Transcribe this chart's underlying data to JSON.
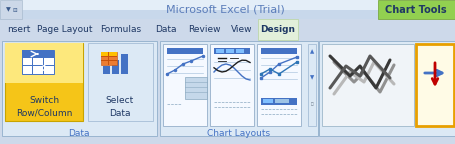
{
  "title_text": "Microsoft Excel (Trial)",
  "title_color": "#5b7dba",
  "chart_tools_text": "Chart Tools",
  "chart_tools_bg": "#92d050",
  "chart_tools_color": "#1f3864",
  "ribbon_bg": "#cdd9ea",
  "menu_items": [
    "nsert",
    "Page Layout",
    "Formulas",
    "Data",
    "Review",
    "View",
    "Design"
  ],
  "menu_color": "#1f3864",
  "section_label_data": "Data",
  "section_label_layouts": "Chart Layouts",
  "btn_switch_text": "Switch\nRow/Column",
  "btn_select_text": "Select\nData",
  "btn_bg_yellow": "#f5c518",
  "yellow_light": "#fde87c",
  "blue_icon": "#4472c4",
  "orange_icon": "#ed7d31",
  "ribbon_border": "#a8bfd4",
  "section_bg": "#dce6f1",
  "thumb_bg": "#eef4fb",
  "thumb_line_blue": "#4472c4",
  "thumb_line_dark": "#1f1f1f",
  "scroll_bg": "#d4dfe8"
}
